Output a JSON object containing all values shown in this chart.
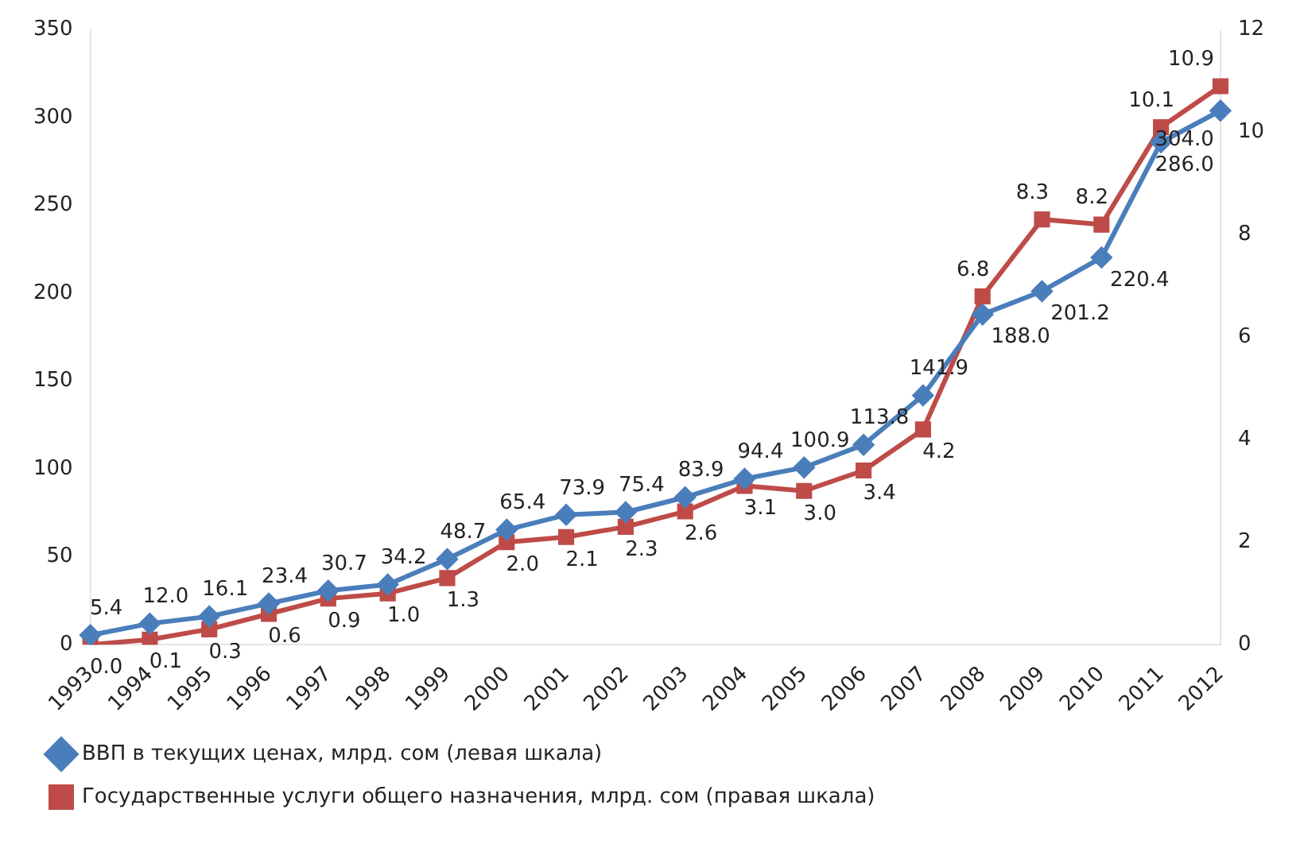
{
  "chart_data": {
    "type": "line",
    "categories": [
      "1993",
      "1994",
      "1995",
      "1996",
      "1997",
      "1998",
      "1999",
      "2000",
      "2001",
      "2002",
      "2003",
      "2004",
      "2005",
      "2006",
      "2007",
      "2008",
      "2009",
      "2010",
      "2011",
      "2012"
    ],
    "series": [
      {
        "name": "ВВП в текущих ценах, млрд. сом (левая шкала)",
        "color": "#4a7ebb",
        "marker": "diamond",
        "values": [
          5.4,
          12.0,
          16.1,
          23.4,
          30.7,
          34.2,
          48.7,
          65.4,
          73.9,
          75.4,
          83.9,
          94.4,
          100.9,
          113.8,
          141.9,
          188.0,
          201.2,
          220.4,
          286.0,
          304.0
        ],
        "value_labels": [
          "5.4",
          "12.0",
          "16.1",
          "23.4",
          "30.7",
          "34.2",
          "48.7",
          "65.4",
          "73.9",
          "75.4",
          "83.9",
          "94.4",
          "100.9",
          "113.8",
          "141.9",
          "188.0",
          "201.2",
          "220.4",
          "286.0",
          "304.0"
        ]
      },
      {
        "name": "Государственные услуги общего назначения, млрд. сом (правая шкала)",
        "color": "#be4b48",
        "marker": "square",
        "axis": "y2",
        "values": [
          0.0,
          0.1,
          0.3,
          0.6,
          0.9,
          1.0,
          1.3,
          2.0,
          2.1,
          2.3,
          2.6,
          3.1,
          3.0,
          3.4,
          4.2,
          6.8,
          8.3,
          8.2,
          10.1,
          10.9
        ],
        "value_labels": [
          "0.0",
          "0.1",
          "0.3",
          "0.6",
          "0.9",
          "1.0",
          "1.3",
          "2.0",
          "2.1",
          "2.3",
          "2.6",
          "3.1",
          "3.0",
          "3.4",
          "4.2",
          "6.8",
          "8.3",
          "8.2",
          "10.1",
          "10.9"
        ]
      }
    ],
    "ylim": [
      0,
      350
    ],
    "yticks": [
      0,
      50,
      100,
      150,
      200,
      250,
      300,
      350
    ],
    "y2lim": [
      0,
      12
    ],
    "y2ticks": [
      0,
      2,
      4,
      6,
      8,
      10,
      12
    ],
    "grid": false,
    "legend": "bottom",
    "line_style": "solid"
  }
}
